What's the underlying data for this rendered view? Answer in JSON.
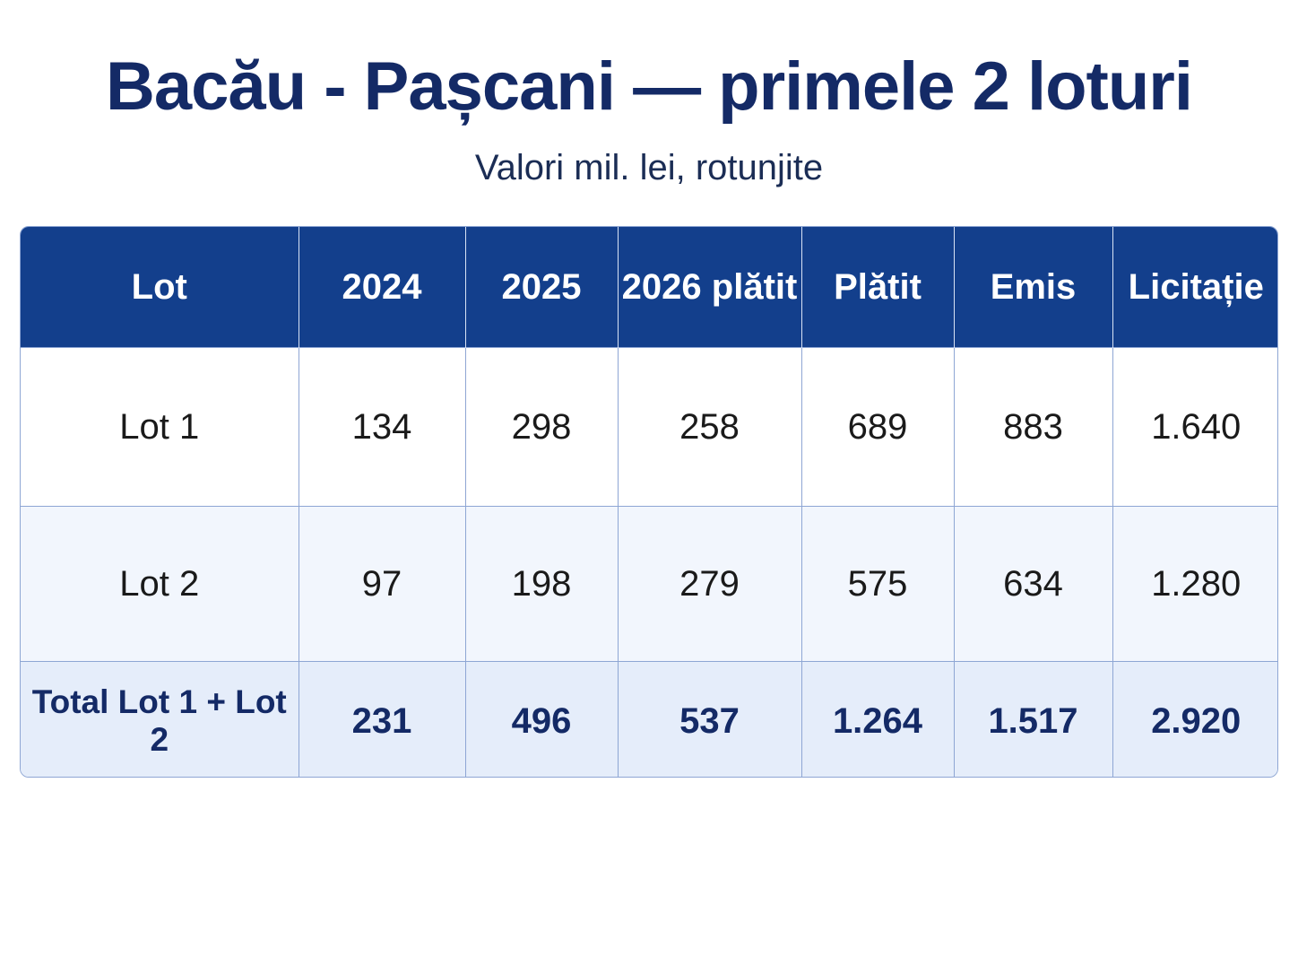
{
  "title": "Bacău - Pașcani — primele 2 loturi",
  "subtitle": "Valori mil. lei, rotunjite",
  "chart_data": {
    "type": "table",
    "columns": [
      "Lot",
      "2024",
      "2025",
      "2026 plătit",
      "Plătit",
      "Emis",
      "Licitație"
    ],
    "rows": [
      [
        "Lot 1",
        "134",
        "298",
        "258",
        "689",
        "883",
        "1.640"
      ],
      [
        "Lot 2",
        "97",
        "198",
        "279",
        "575",
        "634",
        "1.280"
      ],
      [
        "Total Lot 1 + Lot 2",
        "231",
        "496",
        "537",
        "1.264",
        "1.517",
        "2.920"
      ]
    ]
  },
  "colors": {
    "header_bg": "#133f8c",
    "title": "#142a66",
    "border": "#8ea6d4",
    "row_alt": "#f2f6fd",
    "total_bg": "#e5edfa"
  }
}
